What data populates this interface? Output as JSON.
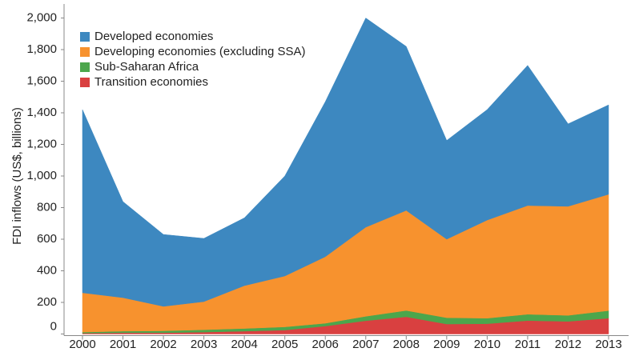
{
  "chart_data": {
    "type": "stacked_area",
    "ylabel": "FDI inflows (US$, billions)",
    "categories": [
      "2000",
      "2001",
      "2002",
      "2003",
      "2004",
      "2005",
      "2006",
      "2007",
      "2008",
      "2009",
      "2010",
      "2011",
      "2012",
      "2013"
    ],
    "series": [
      {
        "name": "Transition economies",
        "color": "#d94040",
        "values": [
          5,
          8,
          8,
          12,
          18,
          25,
          50,
          84,
          109,
          63,
          65,
          85,
          80,
          100
        ]
      },
      {
        "name": "Sub-Saharan Africa",
        "color": "#4ca64c",
        "values": [
          7,
          10,
          12,
          15,
          17,
          20,
          18,
          28,
          40,
          40,
          35,
          40,
          38,
          48
        ]
      },
      {
        "name": "Developing economies (excluding SSA)",
        "color": "#f7922e",
        "values": [
          249,
          212,
          155,
          178,
          271,
          322,
          421,
          564,
          633,
          497,
          621,
          688,
          690,
          736
        ]
      },
      {
        "name": "Developed economies",
        "color": "#3d88c0",
        "values": [
          1159,
          608,
          455,
          400,
          429,
          633,
          981,
          1324,
          1038,
          625,
          699,
          887,
          522,
          566
        ]
      }
    ],
    "legend_order": "reverse",
    "ylim": [
      0,
      2000
    ],
    "yticks": [
      0,
      200,
      400,
      600,
      800,
      {
        "value": 1000,
        "label": "1,000"
      },
      {
        "value": 1200,
        "label": "1,200"
      },
      {
        "value": 1400,
        "label": "1,400"
      },
      {
        "value": 1600,
        "label": "1,600"
      },
      {
        "value": 1800,
        "label": "1,800"
      },
      {
        "value": 2000,
        "label": "2,000"
      }
    ]
  }
}
